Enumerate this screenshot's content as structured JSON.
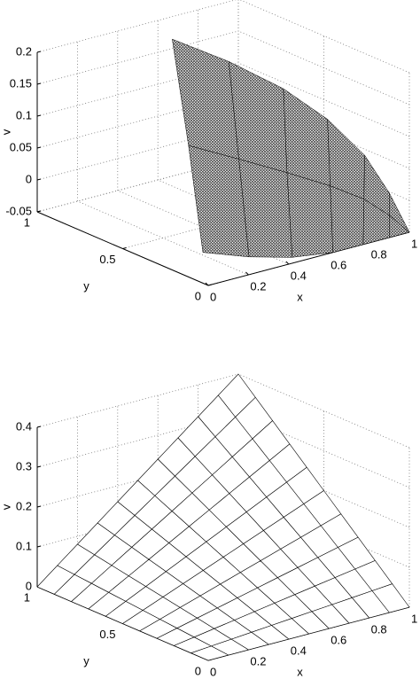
{
  "chart_data": [
    {
      "type": "surface",
      "xlabel": "x",
      "ylabel": "y",
      "zlabel": "v",
      "xlim": [
        0,
        1
      ],
      "ylim": [
        0,
        1
      ],
      "zlim": [
        -0.05,
        0.2
      ],
      "xticks": [
        0,
        0.2,
        0.4,
        0.6,
        0.8,
        1
      ],
      "yticks": [
        0,
        0.5,
        1
      ],
      "zticks": [
        -0.05,
        0,
        0.05,
        0.1,
        0.15,
        0.2
      ],
      "grid": true,
      "color": "#000000",
      "x": [
        [
          0.51,
          0.57,
          0.68,
          0.78,
          0.82,
          0.9,
          1
        ],
        [
          0.37,
          0.45,
          0.57,
          0.7,
          0.8,
          0.9,
          1
        ],
        [
          0.22,
          0.33,
          0.46,
          0.62,
          0.77,
          0.9,
          1
        ]
      ],
      "y": [
        [
          0.81,
          0.55,
          0.36,
          0.22,
          0.05,
          0,
          0
        ],
        [
          0.55,
          0.35,
          0.21,
          0.11,
          0.03,
          0,
          0
        ],
        [
          0.29,
          0.15,
          0.05,
          0,
          0,
          0,
          0
        ]
      ],
      "z": [
        [
          0.2,
          0.19,
          0.16,
          0.12,
          0.08,
          0.02,
          -0.05
        ],
        [
          0.075,
          0.07,
          0.055,
          0.035,
          0.015,
          -0.015,
          -0.05
        ],
        [
          -0.05,
          -0.05,
          -0.05,
          -0.05,
          -0.05,
          -0.05,
          -0.05
        ]
      ]
    },
    {
      "type": "surface",
      "xlabel": "x",
      "ylabel": "y",
      "zlabel": "v",
      "xlim": [
        0,
        1
      ],
      "ylim": [
        0,
        1
      ],
      "zlim": [
        0,
        0.4
      ],
      "xticks": [
        0,
        0.2,
        0.4,
        0.6,
        0.8,
        1
      ],
      "yticks": [
        0,
        0.5,
        1
      ],
      "zticks": [
        0,
        0.1,
        0.2,
        0.3,
        0.4
      ],
      "grid": true,
      "color": "#000000",
      "x": [
        0,
        0.1,
        0.2,
        0.3,
        0.4,
        0.5,
        0.6,
        0.7,
        0.8,
        0.9,
        1
      ],
      "y": [
        0,
        0.1,
        0.2,
        0.3,
        0.4,
        0.5,
        0.6,
        0.7,
        0.8,
        0.9,
        1
      ],
      "z": [
        [
          0,
          0,
          0,
          0,
          0,
          0,
          0,
          0,
          0,
          0,
          0
        ],
        [
          0,
          0.004,
          0.008,
          0.012,
          0.016,
          0.02,
          0.024,
          0.028,
          0.032,
          0.036,
          0.04
        ],
        [
          0,
          0.008,
          0.016,
          0.024,
          0.032,
          0.04,
          0.048,
          0.056,
          0.064,
          0.072,
          0.08
        ],
        [
          0,
          0.012,
          0.024,
          0.036,
          0.048,
          0.06,
          0.072,
          0.084,
          0.096,
          0.108,
          0.12
        ],
        [
          0,
          0.016,
          0.032,
          0.048,
          0.064,
          0.08,
          0.096,
          0.112,
          0.128,
          0.144,
          0.16
        ],
        [
          0,
          0.02,
          0.04,
          0.06,
          0.08,
          0.1,
          0.12,
          0.14,
          0.16,
          0.18,
          0.2
        ],
        [
          0,
          0.024,
          0.048,
          0.072,
          0.096,
          0.12,
          0.144,
          0.168,
          0.192,
          0.216,
          0.24
        ],
        [
          0,
          0.028,
          0.056,
          0.084,
          0.112,
          0.14,
          0.168,
          0.196,
          0.224,
          0.252,
          0.28
        ],
        [
          0,
          0.032,
          0.064,
          0.096,
          0.128,
          0.16,
          0.192,
          0.224,
          0.256,
          0.288,
          0.32
        ],
        [
          0,
          0.036,
          0.072,
          0.108,
          0.144,
          0.18,
          0.216,
          0.252,
          0.288,
          0.324,
          0.36
        ],
        [
          0,
          0.04,
          0.08,
          0.12,
          0.16,
          0.2,
          0.24,
          0.28,
          0.32,
          0.36,
          0.4
        ]
      ]
    }
  ]
}
